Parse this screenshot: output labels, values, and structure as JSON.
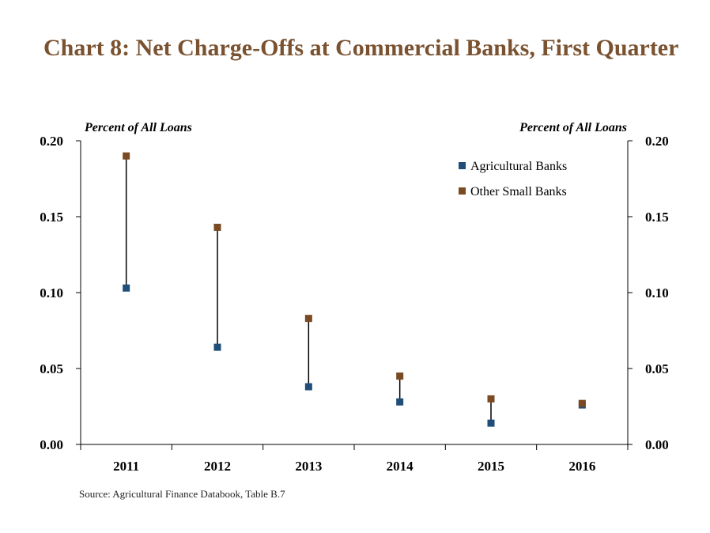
{
  "chart_data": {
    "type": "scatter",
    "title": "Chart 8: Net Charge-Offs at Commercial Banks, First Quarter",
    "ylabel_left": "Percent of All Loans",
    "ylabel_right": "Percent of All Loans",
    "categories": [
      "2011",
      "2012",
      "2013",
      "2014",
      "2015",
      "2016"
    ],
    "ylim": [
      0,
      0.2
    ],
    "yticks": [
      "0.00",
      "0.05",
      "0.10",
      "0.15",
      "0.20"
    ],
    "series": [
      {
        "name": "Agricultural Banks",
        "color": "#1f4e79",
        "values": [
          0.103,
          0.064,
          0.038,
          0.028,
          0.014,
          0.026
        ]
      },
      {
        "name": "Other Small Banks",
        "color": "#7a4a22",
        "values": [
          0.19,
          0.143,
          0.083,
          0.045,
          0.03,
          0.027
        ]
      }
    ],
    "connector": "vertical line between the two series values for each year",
    "legend_position": "top-right",
    "grid": false
  },
  "source": "Source: Agricultural Finance Databook, Table B.7"
}
